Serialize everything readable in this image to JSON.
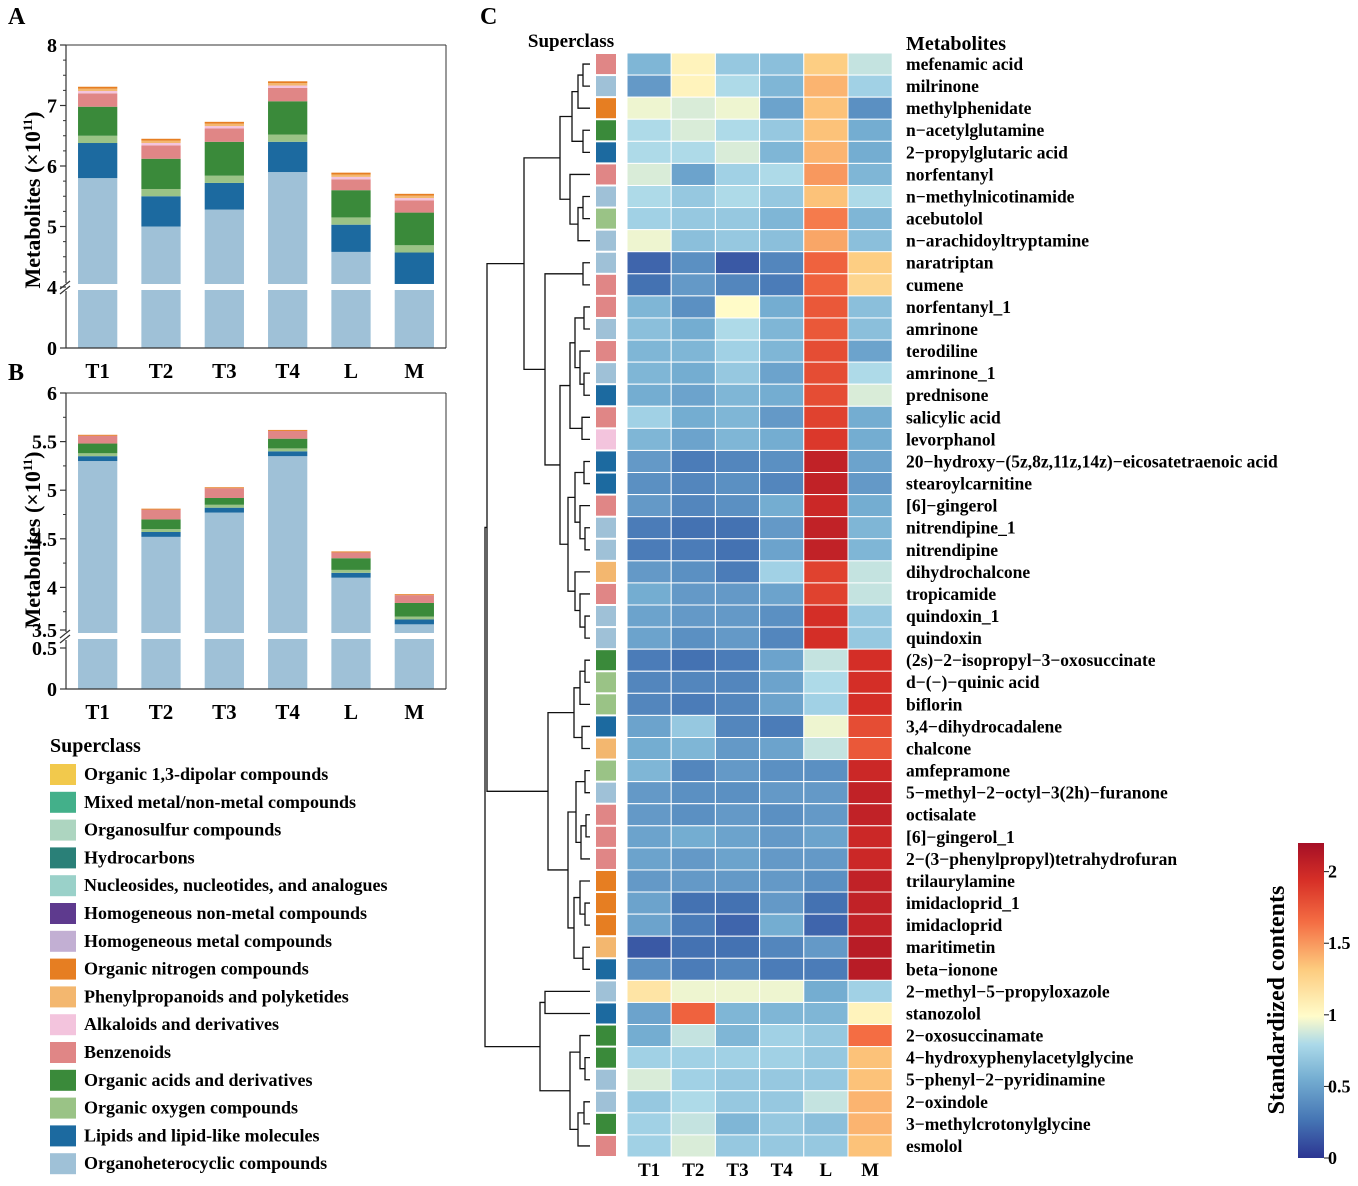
{
  "panels": {
    "a": "A",
    "b": "B",
    "c": "C"
  },
  "chart_data": [
    {
      "type": "bar",
      "stacked": true,
      "panel": "A",
      "ylabel": "Metabolites (×10",
      "ylabel_sup": "11",
      "ylabel_close": ")",
      "categories": [
        "T1",
        "T2",
        "T3",
        "T4",
        "L",
        "M"
      ],
      "ylim": [
        0,
        8
      ],
      "yticks": [
        "0",
        "4",
        "5",
        "6",
        "7",
        "8"
      ],
      "axis_break": [
        0,
        4
      ],
      "series": [
        {
          "name": "Organoheterocyclic compounds",
          "values": [
            5.8,
            5.0,
            5.28,
            5.9,
            4.58,
            4.05
          ]
        },
        {
          "name": "Lipids and lipid-like molecules",
          "values": [
            0.58,
            0.5,
            0.44,
            0.5,
            0.45,
            0.52
          ]
        },
        {
          "name": "Organic oxygen compounds",
          "values": [
            0.12,
            0.12,
            0.12,
            0.12,
            0.12,
            0.12
          ]
        },
        {
          "name": "Organic acids and derivatives",
          "values": [
            0.48,
            0.5,
            0.56,
            0.55,
            0.45,
            0.54
          ]
        },
        {
          "name": "Benzenoids",
          "values": [
            0.22,
            0.22,
            0.22,
            0.22,
            0.18,
            0.2
          ]
        },
        {
          "name": "Alkaloids and derivatives",
          "values": [
            0.04,
            0.04,
            0.04,
            0.04,
            0.04,
            0.04
          ]
        },
        {
          "name": "Phenylpropanoids and polyketides",
          "values": [
            0.04,
            0.04,
            0.04,
            0.04,
            0.04,
            0.04
          ]
        },
        {
          "name": "Organic nitrogen compounds",
          "values": [
            0.03,
            0.03,
            0.03,
            0.03,
            0.03,
            0.03
          ]
        }
      ]
    },
    {
      "type": "bar",
      "stacked": true,
      "panel": "B",
      "ylabel": "Metabolites (×10",
      "ylabel_sup": "11",
      "ylabel_close": ")",
      "categories": [
        "T1",
        "T2",
        "T3",
        "T4",
        "L",
        "M"
      ],
      "ylim": [
        0,
        6
      ],
      "yticks": [
        "0",
        "0.5",
        "3.5",
        "4",
        "4.5",
        "5",
        "5.5",
        "6"
      ],
      "axis_break": [
        0.5,
        3.5
      ],
      "series": [
        {
          "name": "Organoheterocyclic compounds",
          "values": [
            5.3,
            4.52,
            4.77,
            5.35,
            4.1,
            3.62
          ]
        },
        {
          "name": "Lipids and lipid-like molecules",
          "values": [
            0.05,
            0.05,
            0.05,
            0.05,
            0.05,
            0.05
          ]
        },
        {
          "name": "Organic oxygen compounds",
          "values": [
            0.03,
            0.03,
            0.03,
            0.03,
            0.03,
            0.03
          ]
        },
        {
          "name": "Organic acids and derivatives",
          "values": [
            0.1,
            0.1,
            0.07,
            0.1,
            0.12,
            0.14
          ]
        },
        {
          "name": "Benzenoids",
          "values": [
            0.08,
            0.1,
            0.1,
            0.08,
            0.06,
            0.08
          ]
        },
        {
          "name": "Organic nitrogen compounds",
          "values": [
            0.01,
            0.01,
            0.01,
            0.01,
            0.01,
            0.01
          ]
        }
      ]
    },
    {
      "type": "heatmap",
      "panel": "C",
      "superclass_title": "Superclass",
      "metabolites_title": "Metabolites",
      "columns": [
        "T1",
        "T2",
        "T3",
        "T4",
        "L",
        "M"
      ],
      "colorbar_title": "Standardized contents",
      "colorbar_ticks": [
        "0",
        "0.5",
        "1",
        "1.5",
        "2"
      ],
      "colorbar_range": [
        0,
        2.2
      ],
      "rows": [
        {
          "name": "mefenamic acid",
          "superclass": "Benzenoids",
          "values": [
            0.6,
            1.05,
            0.7,
            0.65,
            1.3,
            0.85
          ]
        },
        {
          "name": "milrinone",
          "superclass": "Organoheterocyclic compounds",
          "values": [
            0.45,
            1.05,
            0.8,
            0.6,
            1.4,
            0.75
          ]
        },
        {
          "name": "methylphenidate",
          "superclass": "Organic nitrogen compounds",
          "values": [
            0.95,
            0.9,
            0.95,
            0.5,
            1.35,
            0.4
          ]
        },
        {
          "name": "n−acetylglutamine",
          "superclass": "Organic acids and derivatives",
          "values": [
            0.8,
            0.9,
            0.8,
            0.7,
            1.35,
            0.55
          ]
        },
        {
          "name": "2−propylglutaric acid",
          "superclass": "Lipids and lipid-like molecules",
          "values": [
            0.8,
            0.8,
            0.9,
            0.6,
            1.4,
            0.55
          ]
        },
        {
          "name": "norfentanyl",
          "superclass": "Benzenoids",
          "values": [
            0.9,
            0.5,
            0.75,
            0.8,
            1.5,
            0.6
          ]
        },
        {
          "name": "n−methylnicotinamide",
          "superclass": "Organoheterocyclic compounds",
          "values": [
            0.8,
            0.7,
            0.8,
            0.7,
            1.35,
            0.8
          ]
        },
        {
          "name": "acebutolol",
          "superclass": "Organic oxygen compounds",
          "values": [
            0.75,
            0.7,
            0.7,
            0.6,
            1.6,
            0.6
          ]
        },
        {
          "name": "n−arachidoyltryptamine",
          "superclass": "Organoheterocyclic compounds",
          "values": [
            0.95,
            0.65,
            0.7,
            0.65,
            1.45,
            0.65
          ]
        },
        {
          "name": "naratriptan",
          "superclass": "Organoheterocyclic compounds",
          "values": [
            0.2,
            0.4,
            0.15,
            0.35,
            1.7,
            1.3
          ]
        },
        {
          "name": "cumene",
          "superclass": "Benzenoids",
          "values": [
            0.25,
            0.45,
            0.35,
            0.3,
            1.7,
            1.25
          ]
        },
        {
          "name": "norfentanyl_1",
          "superclass": "Benzenoids",
          "values": [
            0.6,
            0.4,
            1.0,
            0.55,
            1.75,
            0.65
          ]
        },
        {
          "name": "amrinone",
          "superclass": "Organoheterocyclic compounds",
          "values": [
            0.65,
            0.55,
            0.8,
            0.6,
            1.75,
            0.65
          ]
        },
        {
          "name": "terodiline",
          "superclass": "Benzenoids",
          "values": [
            0.6,
            0.6,
            0.75,
            0.6,
            1.8,
            0.5
          ]
        },
        {
          "name": "amrinone_1",
          "superclass": "Organoheterocyclic compounds",
          "values": [
            0.6,
            0.55,
            0.7,
            0.5,
            1.8,
            0.8
          ]
        },
        {
          "name": "prednisone",
          "superclass": "Lipids and lipid-like molecules",
          "values": [
            0.55,
            0.5,
            0.6,
            0.55,
            1.8,
            0.9
          ]
        },
        {
          "name": "salicylic acid",
          "superclass": "Benzenoids",
          "values": [
            0.75,
            0.55,
            0.6,
            0.45,
            1.85,
            0.55
          ]
        },
        {
          "name": "levorphanol",
          "superclass": "Alkaloids and derivatives",
          "values": [
            0.6,
            0.5,
            0.6,
            0.55,
            1.9,
            0.55
          ]
        },
        {
          "name": "20−hydroxy−(5z,8z,11z,14z)−eicosatetraenoic acid",
          "superclass": "Lipids and lipid-like molecules",
          "values": [
            0.45,
            0.3,
            0.35,
            0.4,
            2.05,
            0.5
          ]
        },
        {
          "name": "stearoylcarnitine",
          "superclass": "Lipids and lipid-like molecules",
          "values": [
            0.4,
            0.35,
            0.4,
            0.35,
            2.05,
            0.45
          ]
        },
        {
          "name": "[6]−gingerol",
          "superclass": "Benzenoids",
          "values": [
            0.45,
            0.35,
            0.4,
            0.55,
            2.0,
            0.55
          ]
        },
        {
          "name": "nitrendipine_1",
          "superclass": "Organoheterocyclic compounds",
          "values": [
            0.3,
            0.25,
            0.25,
            0.45,
            2.05,
            0.6
          ]
        },
        {
          "name": "nitrendipine",
          "superclass": "Organoheterocyclic compounds",
          "values": [
            0.3,
            0.3,
            0.25,
            0.5,
            2.05,
            0.6
          ]
        },
        {
          "name": "dihydrochalcone",
          "superclass": "Phenylpropanoids and polyketides",
          "values": [
            0.45,
            0.4,
            0.3,
            0.75,
            1.85,
            0.85
          ]
        },
        {
          "name": "tropicamide",
          "superclass": "Benzenoids",
          "values": [
            0.55,
            0.45,
            0.45,
            0.5,
            1.85,
            0.85
          ]
        },
        {
          "name": "quindoxin_1",
          "superclass": "Organoheterocyclic compounds",
          "values": [
            0.5,
            0.45,
            0.45,
            0.4,
            1.95,
            0.7
          ]
        },
        {
          "name": "quindoxin",
          "superclass": "Organoheterocyclic compounds",
          "values": [
            0.5,
            0.4,
            0.45,
            0.35,
            1.95,
            0.7
          ]
        },
        {
          "name": "(2s)−2−isopropyl−3−oxosuccinate",
          "superclass": "Organic acids and derivatives",
          "values": [
            0.3,
            0.25,
            0.3,
            0.5,
            0.85,
            1.95
          ]
        },
        {
          "name": "d−(−)−quinic acid",
          "superclass": "Organic oxygen compounds",
          "values": [
            0.35,
            0.35,
            0.35,
            0.5,
            0.8,
            1.95
          ]
        },
        {
          "name": "biflorin",
          "superclass": "Organic oxygen compounds",
          "values": [
            0.35,
            0.3,
            0.35,
            0.5,
            0.75,
            1.95
          ]
        },
        {
          "name": "3,4−dihydrocadalene",
          "superclass": "Lipids and lipid-like molecules",
          "values": [
            0.5,
            0.7,
            0.35,
            0.3,
            0.95,
            1.8
          ]
        },
        {
          "name": "chalcone",
          "superclass": "Phenylpropanoids and polyketides",
          "values": [
            0.55,
            0.6,
            0.45,
            0.5,
            0.85,
            1.75
          ]
        },
        {
          "name": "amfepramone",
          "superclass": "Organic oxygen compounds",
          "values": [
            0.6,
            0.35,
            0.45,
            0.4,
            0.4,
            2.0
          ]
        },
        {
          "name": "5−methyl−2−octyl−3(2h)−furanone",
          "superclass": "Organoheterocyclic compounds",
          "values": [
            0.45,
            0.4,
            0.4,
            0.45,
            0.45,
            2.05
          ]
        },
        {
          "name": "octisalate",
          "superclass": "Benzenoids",
          "values": [
            0.45,
            0.4,
            0.45,
            0.4,
            0.45,
            2.05
          ]
        },
        {
          "name": "[6]−gingerol_1",
          "superclass": "Benzenoids",
          "values": [
            0.5,
            0.55,
            0.5,
            0.45,
            0.5,
            2.0
          ]
        },
        {
          "name": "2−(3−phenylpropyl)tetrahydrofuran",
          "superclass": "Benzenoids",
          "values": [
            0.5,
            0.45,
            0.5,
            0.45,
            0.45,
            2.0
          ]
        },
        {
          "name": "trilaurylamine",
          "superclass": "Organic nitrogen compounds",
          "values": [
            0.45,
            0.45,
            0.45,
            0.45,
            0.4,
            2.05
          ]
        },
        {
          "name": "imidacloprid_1",
          "superclass": "Organic nitrogen compounds",
          "values": [
            0.5,
            0.25,
            0.25,
            0.45,
            0.25,
            2.05
          ]
        },
        {
          "name": "imidacloprid",
          "superclass": "Organic nitrogen compounds",
          "values": [
            0.5,
            0.3,
            0.2,
            0.55,
            0.2,
            2.05
          ]
        },
        {
          "name": "maritimetin",
          "superclass": "Phenylpropanoids and polyketides",
          "values": [
            0.15,
            0.25,
            0.25,
            0.35,
            0.45,
            2.1
          ]
        },
        {
          "name": "beta−ionone",
          "superclass": "Lipids and lipid-like molecules",
          "values": [
            0.4,
            0.3,
            0.35,
            0.3,
            0.3,
            2.1
          ]
        },
        {
          "name": "2−methyl−5−propyloxazole",
          "superclass": "Organoheterocyclic compounds",
          "values": [
            1.15,
            0.95,
            0.95,
            0.95,
            0.55,
            0.75
          ]
        },
        {
          "name": "stanozolol",
          "superclass": "Lipids and lipid-like molecules",
          "values": [
            0.5,
            1.7,
            0.6,
            0.6,
            0.6,
            1.05
          ]
        },
        {
          "name": "2−oxosuccinamate",
          "superclass": "Organic acids and derivatives",
          "values": [
            0.55,
            0.85,
            0.6,
            0.75,
            0.7,
            1.65
          ]
        },
        {
          "name": "4−hydroxyphenylacetylglycine",
          "superclass": "Organic acids and derivatives",
          "values": [
            0.75,
            0.75,
            0.75,
            0.75,
            0.7,
            1.35
          ]
        },
        {
          "name": "5−phenyl−2−pyridinamine",
          "superclass": "Organoheterocyclic compounds",
          "values": [
            0.9,
            0.75,
            0.7,
            0.7,
            0.7,
            1.35
          ]
        },
        {
          "name": "2−oxindole",
          "superclass": "Organoheterocyclic compounds",
          "values": [
            0.7,
            0.8,
            0.7,
            0.7,
            0.85,
            1.4
          ]
        },
        {
          "name": "3−methylcrotonylglycine",
          "superclass": "Organic acids and derivatives",
          "values": [
            0.75,
            0.85,
            0.6,
            0.7,
            0.65,
            1.4
          ]
        },
        {
          "name": "esmolol",
          "superclass": "Benzenoids",
          "values": [
            0.75,
            0.9,
            0.7,
            0.7,
            0.7,
            1.35
          ]
        }
      ]
    }
  ],
  "legend": {
    "title": "Superclass",
    "items": [
      {
        "label": "Organic 1,3-dipolar compounds",
        "color": "#f2c94c"
      },
      {
        "label": "Mixed metal/non-metal compounds",
        "color": "#43b08a"
      },
      {
        "label": "Organosulfur compounds",
        "color": "#add5c0"
      },
      {
        "label": "Hydrocarbons",
        "color": "#2a8078"
      },
      {
        "label": "Nucleosides, nucleotides, and analogues",
        "color": "#9ad1c9"
      },
      {
        "label": "Homogeneous non-metal compounds",
        "color": "#5e3a8e"
      },
      {
        "label": "Homogeneous metal compounds",
        "color": "#c2afd3"
      },
      {
        "label": "Organic nitrogen compounds",
        "color": "#e67e22"
      },
      {
        "label": "Phenylpropanoids and polyketides",
        "color": "#f3b76f"
      },
      {
        "label": "Alkaloids and derivatives",
        "color": "#f3c4dd"
      },
      {
        "label": "Benzenoids",
        "color": "#e08686"
      },
      {
        "label": "Organic acids and derivatives",
        "color": "#3a8a3a"
      },
      {
        "label": "Organic oxygen compounds",
        "color": "#9ac386"
      },
      {
        "label": "Lipids and lipid-like molecules",
        "color": "#1c6aa0"
      },
      {
        "label": "Organoheterocyclic compounds",
        "color": "#9fc1d7"
      }
    ]
  }
}
